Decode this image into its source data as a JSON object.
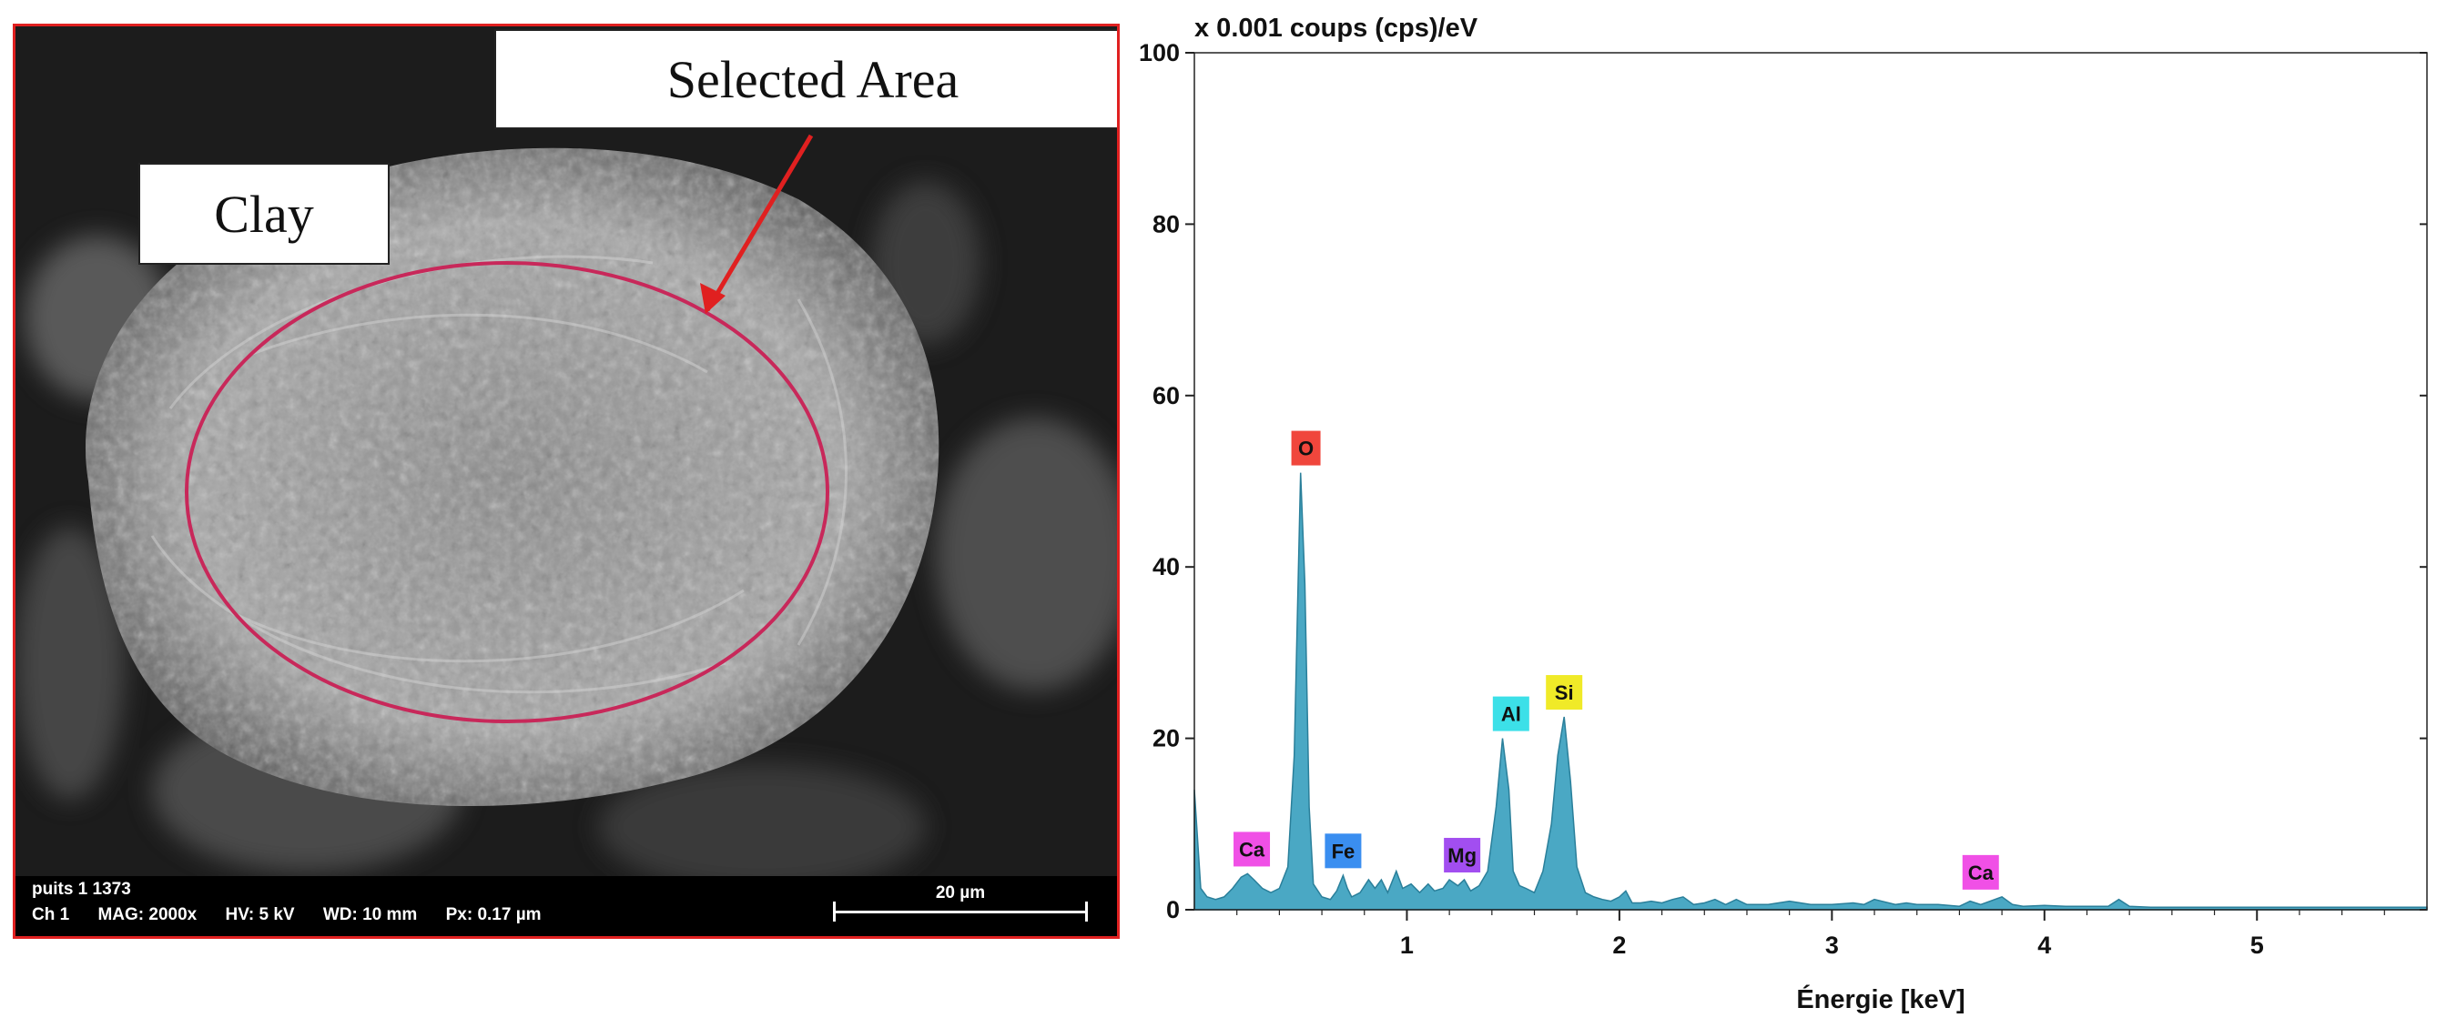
{
  "sem_image": {
    "labels": {
      "clay": "Clay",
      "selected_area": "Selected Area"
    },
    "info": {
      "line1": "puits 1 1373",
      "channel": "Ch 1",
      "mag": "MAG: 2000x",
      "hv": "HV: 5 kV",
      "wd": "WD: 10 mm",
      "px": "Px: 0.17 µm"
    },
    "scale_bar": "20 µm",
    "colors": {
      "frame": "#e02020",
      "ellipse": "#c8285a",
      "arrow": "#e02020"
    }
  },
  "chart_data": {
    "type": "area",
    "title": "",
    "ylabel": "x 0.001 coups (cps)/eV",
    "xlabel": "Énergie [keV]",
    "xlim": [
      0,
      5.8
    ],
    "ylim": [
      0,
      100
    ],
    "xticks": [
      1,
      2,
      3,
      4,
      5
    ],
    "yticks": [
      0,
      20,
      40,
      60,
      80,
      100
    ],
    "grid": false,
    "fill_color": "#4aa8c4",
    "stroke_color": "#2a7f9a",
    "series": [
      {
        "x": [
          0.0,
          0.03,
          0.06,
          0.1,
          0.14,
          0.18,
          0.22,
          0.25,
          0.28,
          0.32,
          0.36,
          0.4,
          0.44,
          0.47,
          0.5,
          0.52,
          0.54,
          0.56,
          0.6,
          0.64,
          0.67,
          0.7,
          0.72,
          0.74,
          0.78,
          0.82,
          0.85,
          0.88,
          0.91,
          0.95,
          0.98,
          1.02,
          1.06,
          1.1,
          1.13,
          1.17,
          1.2,
          1.24,
          1.27,
          1.3,
          1.34,
          1.38,
          1.42,
          1.45,
          1.48,
          1.5,
          1.53,
          1.56,
          1.6,
          1.64,
          1.68,
          1.71,
          1.74,
          1.77,
          1.8,
          1.84,
          1.88,
          1.92,
          1.96,
          2.0,
          2.03,
          2.06,
          2.1,
          2.15,
          2.2,
          2.25,
          2.3,
          2.35,
          2.4,
          2.45,
          2.5,
          2.55,
          2.6,
          2.7,
          2.8,
          2.9,
          3.0,
          3.1,
          3.15,
          3.2,
          3.3,
          3.35,
          3.4,
          3.5,
          3.6,
          3.65,
          3.7,
          3.8,
          3.85,
          3.9,
          4.0,
          4.1,
          4.2,
          4.3,
          4.35,
          4.4,
          4.5,
          4.7,
          5.0,
          5.3,
          5.6,
          5.8
        ],
        "y": [
          14,
          2.5,
          1.5,
          1.2,
          1.5,
          2.5,
          3.8,
          4.2,
          3.5,
          2.5,
          2.0,
          2.5,
          5.0,
          18,
          51,
          38,
          12,
          3.0,
          1.5,
          1.2,
          2.2,
          4.0,
          2.5,
          1.5,
          2.0,
          3.5,
          2.5,
          3.5,
          2.0,
          4.5,
          2.5,
          3.0,
          2.0,
          3.0,
          2.2,
          2.5,
          3.5,
          2.8,
          3.5,
          2.2,
          2.8,
          4.5,
          12,
          20,
          14,
          4.5,
          2.8,
          2.5,
          2.0,
          4.5,
          10,
          18,
          22.5,
          15,
          5.0,
          2.0,
          1.5,
          1.2,
          1.0,
          1.5,
          2.2,
          0.8,
          0.8,
          1.0,
          0.8,
          1.2,
          1.5,
          0.6,
          0.8,
          1.2,
          0.6,
          1.2,
          0.6,
          0.6,
          1.0,
          0.6,
          0.6,
          0.8,
          0.6,
          1.2,
          0.6,
          0.8,
          0.6,
          0.6,
          0.4,
          1.0,
          0.6,
          1.5,
          0.6,
          0.4,
          0.5,
          0.4,
          0.4,
          0.4,
          1.2,
          0.4,
          0.3,
          0.3,
          0.3,
          0.3,
          0.3,
          0.3
        ]
      }
    ],
    "peak_labels": [
      {
        "label": "O",
        "x": 0.525,
        "y": 51,
        "color": "#f0463c"
      },
      {
        "label": "Si",
        "x": 1.74,
        "y": 22.5,
        "color": "#f0ea28"
      },
      {
        "label": "Al",
        "x": 1.49,
        "y": 20,
        "color": "#3ce0e8"
      },
      {
        "label": "Ca",
        "x": 0.27,
        "y": 4.2,
        "color": "#f050e6"
      },
      {
        "label": "Fe",
        "x": 0.7,
        "y": 4.0,
        "color": "#3a8ef0"
      },
      {
        "label": "Mg",
        "x": 1.26,
        "y": 3.5,
        "color": "#a24ef0"
      },
      {
        "label": "Ca",
        "x": 3.7,
        "y": 1.5,
        "color": "#f050e6"
      }
    ]
  }
}
